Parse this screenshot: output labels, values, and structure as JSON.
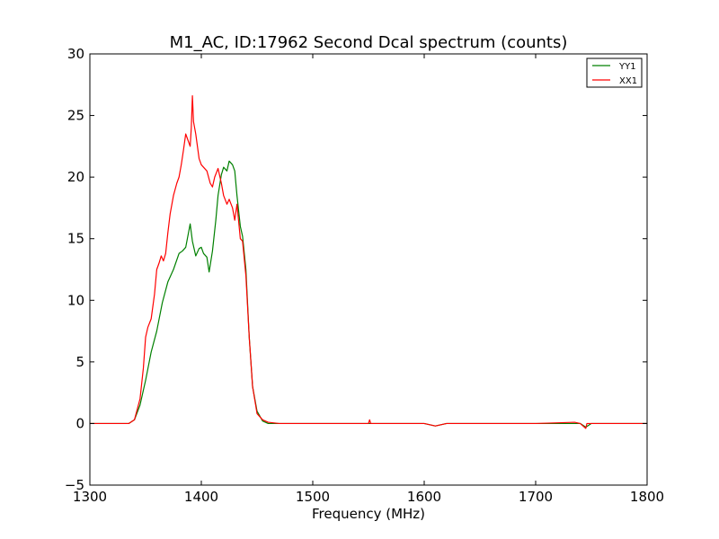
{
  "chart_data": {
    "type": "line",
    "title": "M1_AC, ID:17962 Second Dcal spectrum (counts)",
    "xlabel": "Frequency (MHz)",
    "ylabel": "",
    "xlim": [
      1300,
      1800
    ],
    "ylim": [
      -5,
      30
    ],
    "xticks": [
      1300,
      1400,
      1500,
      1600,
      1700,
      1800
    ],
    "yticks": [
      -5,
      0,
      5,
      10,
      15,
      20,
      25,
      30
    ],
    "grid": false,
    "legend_position": "top-right",
    "series": [
      {
        "name": "YY1",
        "color": "#008000",
        "x": [
          1300,
          1320,
          1335,
          1340,
          1345,
          1350,
          1355,
          1360,
          1365,
          1370,
          1375,
          1380,
          1383,
          1386,
          1390,
          1392,
          1395,
          1398,
          1400,
          1402,
          1405,
          1407,
          1410,
          1413,
          1415,
          1418,
          1420,
          1423,
          1425,
          1428,
          1430,
          1432,
          1435,
          1437,
          1440,
          1443,
          1446,
          1450,
          1455,
          1460,
          1470,
          1500,
          1550,
          1600,
          1610,
          1615,
          1620,
          1700,
          1740,
          1745,
          1750,
          1800
        ],
        "y": [
          0,
          0,
          0,
          0.3,
          1.5,
          3.5,
          5.8,
          7.5,
          9.8,
          11.5,
          12.5,
          13.8,
          14.0,
          14.3,
          16.2,
          14.8,
          13.6,
          14.2,
          14.3,
          13.8,
          13.5,
          12.3,
          14.0,
          16.5,
          18.5,
          20.2,
          20.8,
          20.5,
          21.3,
          21.0,
          20.5,
          18.5,
          16.0,
          15.2,
          12.5,
          7.0,
          3.0,
          1.0,
          0.2,
          0,
          0,
          0,
          0,
          0,
          -0.2,
          -0.1,
          0,
          0,
          0,
          -0.3,
          0,
          0
        ]
      },
      {
        "name": "XX1",
        "color": "#ff0000",
        "x": [
          1300,
          1320,
          1335,
          1340,
          1345,
          1348,
          1350,
          1352,
          1355,
          1358,
          1360,
          1362,
          1364,
          1366,
          1368,
          1370,
          1372,
          1375,
          1378,
          1380,
          1382,
          1384,
          1386,
          1388,
          1390,
          1391,
          1392,
          1393,
          1395,
          1398,
          1400,
          1402,
          1405,
          1408,
          1410,
          1412,
          1415,
          1418,
          1420,
          1423,
          1425,
          1428,
          1430,
          1432,
          1435,
          1437,
          1440,
          1443,
          1446,
          1450,
          1455,
          1460,
          1470,
          1500,
          1550,
          1551,
          1552,
          1600,
          1610,
          1615,
          1620,
          1700,
          1735,
          1740,
          1745,
          1746,
          1750,
          1800
        ],
        "y": [
          0,
          0,
          0,
          0.3,
          2.0,
          4.5,
          7.0,
          7.8,
          8.5,
          10.5,
          12.5,
          13.0,
          13.6,
          13.2,
          13.8,
          15.5,
          17.0,
          18.5,
          19.5,
          20.0,
          21.0,
          22.2,
          23.5,
          23.0,
          22.5,
          24.0,
          26.6,
          24.5,
          23.5,
          21.5,
          21.0,
          20.8,
          20.5,
          19.5,
          19.2,
          20.0,
          20.7,
          19.5,
          18.5,
          17.8,
          18.2,
          17.5,
          16.5,
          17.8,
          15.0,
          14.8,
          12.0,
          7.0,
          3.0,
          0.8,
          0.3,
          0.1,
          0,
          0,
          0,
          0.3,
          0,
          0,
          -0.2,
          -0.1,
          0,
          0,
          0.1,
          0,
          -0.4,
          0,
          0,
          0
        ]
      }
    ]
  }
}
